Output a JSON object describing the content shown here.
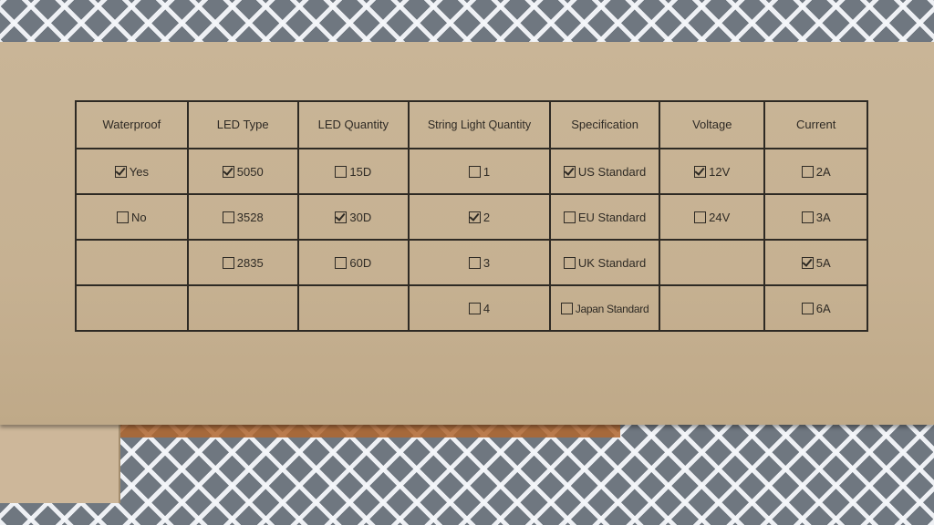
{
  "columns": [
    {
      "header": "Waterproof",
      "options": [
        {
          "label": "Yes",
          "checked": true
        },
        {
          "label": "No",
          "checked": false
        },
        null,
        null
      ]
    },
    {
      "header": "LED Type",
      "options": [
        {
          "label": "5050",
          "checked": true
        },
        {
          "label": "3528",
          "checked": false
        },
        {
          "label": "2835",
          "checked": false
        },
        null
      ]
    },
    {
      "header": "LED Quantity",
      "options": [
        {
          "label": "15D",
          "checked": false
        },
        {
          "label": "30D",
          "checked": true
        },
        {
          "label": "60D",
          "checked": false
        },
        null
      ]
    },
    {
      "header": "String Light Quantity",
      "options": [
        {
          "label": "1",
          "checked": false
        },
        {
          "label": "2",
          "checked": true
        },
        {
          "label": "3",
          "checked": false
        },
        {
          "label": "4",
          "checked": false
        }
      ]
    },
    {
      "header": "Specification",
      "options": [
        {
          "label": "US Standard",
          "checked": true
        },
        {
          "label": "EU Standard",
          "checked": false
        },
        {
          "label": "UK Standard",
          "checked": false
        },
        {
          "label": "Japan Standard",
          "checked": false
        }
      ]
    },
    {
      "header": "Voltage",
      "options": [
        {
          "label": "12V",
          "checked": true
        },
        {
          "label": "24V",
          "checked": false
        },
        null,
        null
      ]
    },
    {
      "header": "Current",
      "options": [
        {
          "label": "2A",
          "checked": false
        },
        {
          "label": "3A",
          "checked": false
        },
        {
          "label": "5A",
          "checked": true
        },
        {
          "label": "6A",
          "checked": false
        }
      ]
    }
  ]
}
